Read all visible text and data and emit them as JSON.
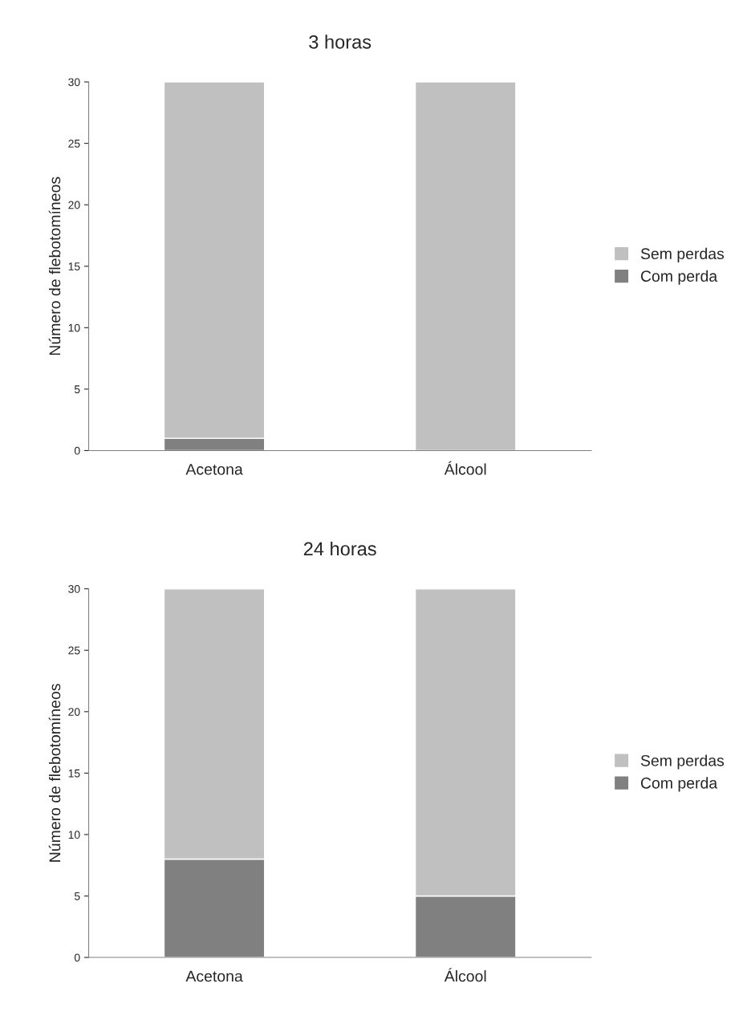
{
  "chart_data": [
    {
      "type": "bar",
      "title": "3 horas",
      "ylabel": "Número de flebotomíneos",
      "categories": [
        "Acetona",
        "Álcool"
      ],
      "stacked": true,
      "ylim": [
        0,
        30
      ],
      "yticks": [
        0,
        5,
        10,
        15,
        20,
        25,
        30
      ],
      "grid": false,
      "legend": "right",
      "series": [
        {
          "name": "Com perda",
          "color": "#808080",
          "values": [
            1,
            0
          ]
        },
        {
          "name": "Sem perdas",
          "color": "#c0c0c0",
          "values": [
            29,
            30
          ]
        }
      ]
    },
    {
      "type": "bar",
      "title": "24 horas",
      "ylabel": "Número de flebotomíneos",
      "categories": [
        "Acetona",
        "Álcool"
      ],
      "stacked": true,
      "ylim": [
        0,
        30
      ],
      "yticks": [
        0,
        5,
        10,
        15,
        20,
        25,
        30
      ],
      "grid": false,
      "legend": "right",
      "series": [
        {
          "name": "Com perda",
          "color": "#808080",
          "values": [
            8,
            5
          ]
        },
        {
          "name": "Sem perdas",
          "color": "#c0c0c0",
          "values": [
            22,
            25
          ]
        }
      ]
    }
  ]
}
